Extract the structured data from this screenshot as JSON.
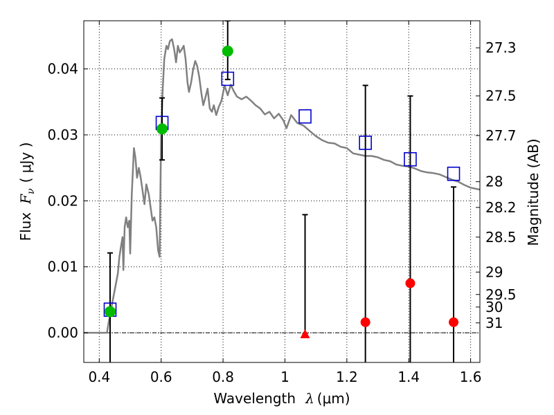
{
  "chart_data": {
    "type": "scatter",
    "xlabel": {
      "prefix": "Wavelength",
      "symbol": "λ",
      "unit": "(μm)"
    },
    "ylabel": {
      "prefix": "Flux",
      "symbol": "F",
      "subscript": "ν",
      "unit": "( μJy )"
    },
    "y2label": "Magnitude (AB)",
    "xlim": [
      0.35,
      1.63
    ],
    "ylim": [
      -0.0045,
      0.0473
    ],
    "grid": true,
    "x_ticks": [
      {
        "value": 0.4,
        "label": "0.4"
      },
      {
        "value": 0.6,
        "label": "0.6"
      },
      {
        "value": 0.8,
        "label": "0.8"
      },
      {
        "value": 1.0,
        "label": "1"
      },
      {
        "value": 1.2,
        "label": "1.2"
      },
      {
        "value": 1.4,
        "label": "1.4"
      },
      {
        "value": 1.6,
        "label": "1.6"
      }
    ],
    "y_ticks": [
      {
        "value": 0.0,
        "label": "0.00"
      },
      {
        "value": 0.01,
        "label": "0.01"
      },
      {
        "value": 0.02,
        "label": "0.02"
      },
      {
        "value": 0.03,
        "label": "0.03"
      },
      {
        "value": 0.04,
        "label": "0.04"
      }
    ],
    "mag_ticks": [
      {
        "value": 0.0432,
        "label": "27.3"
      },
      {
        "value": 0.0359,
        "label": "27.5"
      },
      {
        "value": 0.0299,
        "label": "27.7"
      },
      {
        "value": 0.0229,
        "label": "28"
      },
      {
        "value": 0.019,
        "label": "28.2"
      },
      {
        "value": 0.0145,
        "label": "28.5"
      },
      {
        "value": 0.0092,
        "label": "29"
      },
      {
        "value": 0.0058,
        "label": "29.5"
      },
      {
        "value": 0.0039,
        "label": "30"
      },
      {
        "value": 0.0015,
        "label": "31"
      }
    ],
    "colors": {
      "sed": "#808080",
      "model": "#0000cc",
      "detection": "#00bb00",
      "upper_limit": "#ff0000",
      "errorbar": "#000000"
    },
    "sed_curve": [
      [
        0.35,
        0.0
      ],
      [
        0.418,
        0.0
      ],
      [
        0.425,
        0.0
      ],
      [
        0.432,
        0.002
      ],
      [
        0.44,
        0.004
      ],
      [
        0.45,
        0.0065
      ],
      [
        0.46,
        0.009
      ],
      [
        0.465,
        0.0115
      ],
      [
        0.47,
        0.013
      ],
      [
        0.475,
        0.0145
      ],
      [
        0.478,
        0.0095
      ],
      [
        0.482,
        0.016
      ],
      [
        0.487,
        0.0175
      ],
      [
        0.492,
        0.016
      ],
      [
        0.497,
        0.017
      ],
      [
        0.5,
        0.012
      ],
      [
        0.505,
        0.021
      ],
      [
        0.512,
        0.028
      ],
      [
        0.517,
        0.0265
      ],
      [
        0.522,
        0.0235
      ],
      [
        0.528,
        0.025
      ],
      [
        0.534,
        0.0235
      ],
      [
        0.54,
        0.0215
      ],
      [
        0.546,
        0.0195
      ],
      [
        0.552,
        0.0225
      ],
      [
        0.56,
        0.021
      ],
      [
        0.566,
        0.019
      ],
      [
        0.572,
        0.017
      ],
      [
        0.578,
        0.0175
      ],
      [
        0.584,
        0.016
      ],
      [
        0.59,
        0.0125
      ],
      [
        0.595,
        0.0115
      ],
      [
        0.6,
        0.0305
      ],
      [
        0.605,
        0.037
      ],
      [
        0.61,
        0.0415
      ],
      [
        0.617,
        0.0435
      ],
      [
        0.622,
        0.043
      ],
      [
        0.628,
        0.0442
      ],
      [
        0.635,
        0.0445
      ],
      [
        0.642,
        0.043
      ],
      [
        0.648,
        0.041
      ],
      [
        0.654,
        0.0435
      ],
      [
        0.66,
        0.0425
      ],
      [
        0.667,
        0.043
      ],
      [
        0.673,
        0.0435
      ],
      [
        0.679,
        0.0415
      ],
      [
        0.685,
        0.038
      ],
      [
        0.69,
        0.0365
      ],
      [
        0.697,
        0.038
      ],
      [
        0.703,
        0.0398
      ],
      [
        0.71,
        0.0412
      ],
      [
        0.716,
        0.0405
      ],
      [
        0.723,
        0.0388
      ],
      [
        0.73,
        0.0363
      ],
      [
        0.736,
        0.0345
      ],
      [
        0.742,
        0.0355
      ],
      [
        0.75,
        0.037
      ],
      [
        0.757,
        0.034
      ],
      [
        0.764,
        0.0335
      ],
      [
        0.77,
        0.0345
      ],
      [
        0.778,
        0.033
      ],
      [
        0.786,
        0.0342
      ],
      [
        0.795,
        0.0352
      ],
      [
        0.805,
        0.0375
      ],
      [
        0.815,
        0.036
      ],
      [
        0.825,
        0.0376
      ],
      [
        0.835,
        0.0366
      ],
      [
        0.845,
        0.0358
      ],
      [
        0.86,
        0.0354
      ],
      [
        0.875,
        0.0358
      ],
      [
        0.89,
        0.0352
      ],
      [
        0.905,
        0.0345
      ],
      [
        0.92,
        0.034
      ],
      [
        0.935,
        0.0331
      ],
      [
        0.95,
        0.0335
      ],
      [
        0.965,
        0.0325
      ],
      [
        0.98,
        0.0332
      ],
      [
        0.995,
        0.0322
      ],
      [
        1.005,
        0.031
      ],
      [
        1.02,
        0.033
      ],
      [
        1.04,
        0.0318
      ],
      [
        1.06,
        0.0314
      ],
      [
        1.08,
        0.0306
      ],
      [
        1.1,
        0.0298
      ],
      [
        1.12,
        0.0292
      ],
      [
        1.14,
        0.0288
      ],
      [
        1.16,
        0.0287
      ],
      [
        1.18,
        0.0282
      ],
      [
        1.2,
        0.028
      ],
      [
        1.22,
        0.0272
      ],
      [
        1.24,
        0.027
      ],
      [
        1.26,
        0.0268
      ],
      [
        1.28,
        0.0268
      ],
      [
        1.3,
        0.0266
      ],
      [
        1.32,
        0.0262
      ],
      [
        1.34,
        0.026
      ],
      [
        1.36,
        0.0255
      ],
      [
        1.38,
        0.0253
      ],
      [
        1.4,
        0.0252
      ],
      [
        1.42,
        0.0249
      ],
      [
        1.44,
        0.0245
      ],
      [
        1.46,
        0.0243
      ],
      [
        1.48,
        0.0242
      ],
      [
        1.5,
        0.024
      ],
      [
        1.52,
        0.0236
      ],
      [
        1.54,
        0.0232
      ],
      [
        1.56,
        0.0229
      ],
      [
        1.58,
        0.0224
      ],
      [
        1.6,
        0.022
      ],
      [
        1.63,
        0.0217
      ]
    ],
    "model_points": [
      {
        "x": 0.435,
        "y": 0.0035
      },
      {
        "x": 0.603,
        "y": 0.0318
      },
      {
        "x": 0.815,
        "y": 0.0385
      },
      {
        "x": 1.065,
        "y": 0.0328
      },
      {
        "x": 1.26,
        "y": 0.0288
      },
      {
        "x": 1.405,
        "y": 0.0263
      },
      {
        "x": 1.545,
        "y": 0.0241
      }
    ],
    "detections": [
      {
        "x": 0.435,
        "y": 0.0032,
        "err_low": -0.0045,
        "err_high": 0.0121
      },
      {
        "x": 0.603,
        "y": 0.0309,
        "err_low": 0.0262,
        "err_high": 0.0356
      },
      {
        "x": 0.815,
        "y": 0.0427,
        "err_low": 0.0384,
        "err_high": 0.0473
      }
    ],
    "upper_limits": [
      {
        "x": 1.065,
        "y": -0.0002,
        "marker": "triangle",
        "err_low": -0.0002,
        "err_high": 0.0179
      },
      {
        "x": 1.26,
        "y": 0.0016,
        "marker": "circle",
        "err_low": -0.0045,
        "err_high": 0.0375
      },
      {
        "x": 1.405,
        "y": 0.0075,
        "marker": "circle",
        "err_low": -0.0045,
        "err_high": 0.0359
      },
      {
        "x": 1.545,
        "y": 0.0016,
        "marker": "circle",
        "err_low": -0.0045,
        "err_high": 0.0221
      }
    ]
  }
}
